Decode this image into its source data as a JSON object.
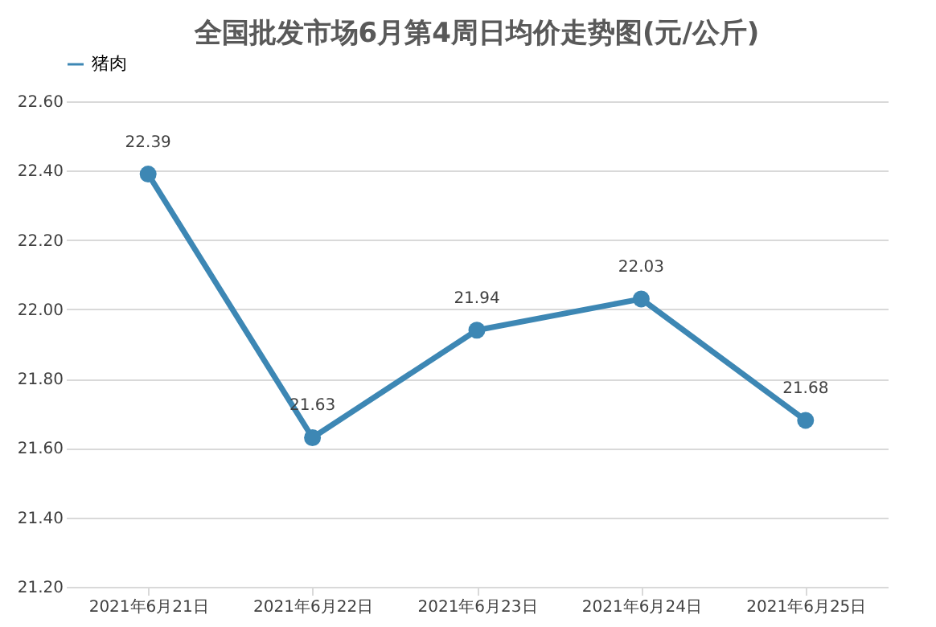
{
  "chart_data": {
    "type": "line",
    "title": "全国批发市场6月第4周日均价走势图(元/公斤)",
    "categories": [
      "2021年6月21日",
      "2021年6月22日",
      "2021年6月23日",
      "2021年6月24日",
      "2021年6月25日"
    ],
    "series": [
      {
        "name": "猪肉",
        "color": "#3d87b4",
        "values": [
          22.39,
          21.63,
          21.94,
          22.03,
          21.68
        ]
      }
    ],
    "ylim": [
      21.2,
      22.6
    ],
    "yticks": [
      {
        "value": 21.2,
        "label": "21.20"
      },
      {
        "value": 21.4,
        "label": "21.40"
      },
      {
        "value": 21.6,
        "label": "21.60"
      },
      {
        "value": 21.8,
        "label": "21.80"
      },
      {
        "value": 22.0,
        "label": "22.00"
      },
      {
        "value": 22.2,
        "label": "22.20"
      },
      {
        "value": 22.4,
        "label": "22.40"
      },
      {
        "value": 22.6,
        "label": "22.60"
      }
    ],
    "grid": true,
    "legend": "top",
    "marker": "circle",
    "line_style": "solid",
    "data_labels": true
  }
}
